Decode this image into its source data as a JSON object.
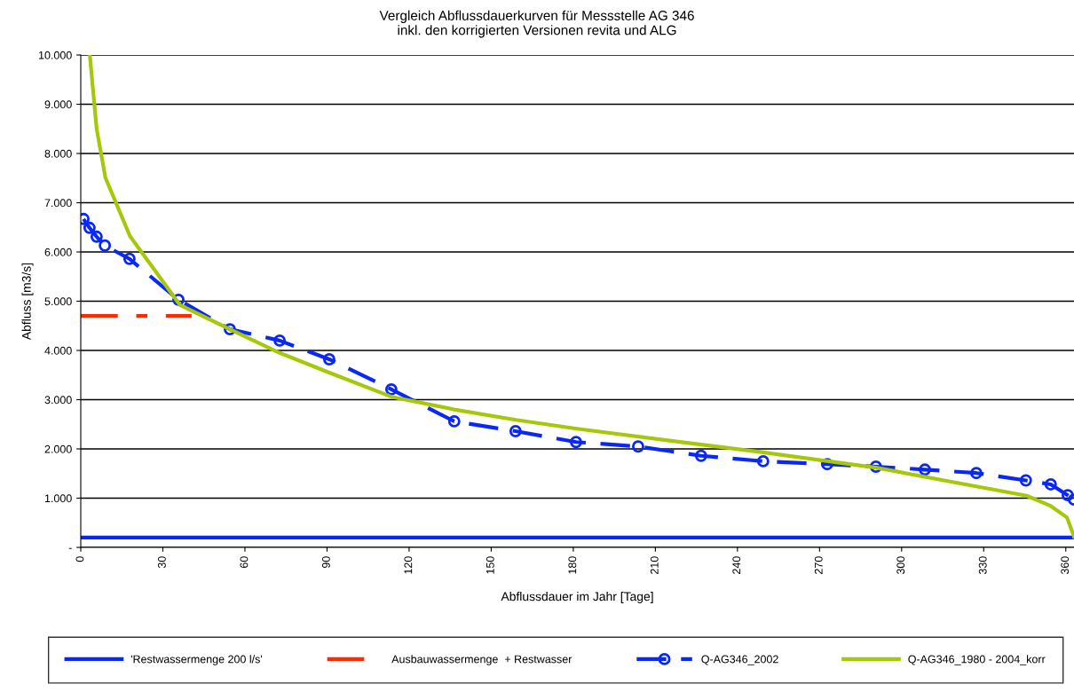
{
  "chart_data": {
    "type": "line",
    "title": "Vergleich Abflussdauerkurven für Messstelle AG 346\ninkl. den korrigierten Versionen revita und ALG",
    "xlabel": "Abflussdauer im Jahr [Tage]",
    "ylabel": "Abfluss [m3/s]",
    "xlim": [
      0,
      363
    ],
    "xticks": [
      0,
      30,
      60,
      90,
      120,
      150,
      180,
      210,
      240,
      270,
      300,
      330,
      360
    ],
    "ylim": [
      0,
      10000
    ],
    "yticks": [
      {
        "value": 0,
        "label": "-"
      },
      {
        "value": 1000,
        "label": "1.000"
      },
      {
        "value": 2000,
        "label": "2.000"
      },
      {
        "value": 3000,
        "label": "3.000"
      },
      {
        "value": 4000,
        "label": "4.000"
      },
      {
        "value": 5000,
        "label": "5.000"
      },
      {
        "value": 6000,
        "label": "6.000"
      },
      {
        "value": 7000,
        "label": "7.000"
      },
      {
        "value": 8000,
        "label": "8.000"
      },
      {
        "value": 9000,
        "label": "9.000"
      },
      {
        "value": 10000,
        "label": "10.000"
      }
    ],
    "grid": "y",
    "legend": "bottom",
    "series": [
      {
        "name": "'Restwassermenge 200 l/s'",
        "color": "#0a28f5",
        "line_style": "solid",
        "marker": "none",
        "x": [
          0,
          363
        ],
        "values": [
          200,
          200
        ]
      },
      {
        "name": "Ausbauwassermenge  + Restwasser",
        "color": "#ff2a00",
        "line_style": "dashdot",
        "marker": "none",
        "x": [
          0,
          40.5
        ],
        "values": [
          4700,
          4700
        ]
      },
      {
        "name": "Q-AG346_2002",
        "color": "#0a28f5",
        "line_style": "dashed",
        "marker": "circle",
        "x": [
          1,
          3.2,
          5.8,
          8.8,
          17.8,
          35.7,
          54.5,
          72.7,
          90.8,
          113.5,
          136.5,
          158.9,
          181,
          203.7,
          226.7,
          249.4,
          272.8,
          290.6,
          308.5,
          327.3,
          345.4,
          354.5,
          360.7,
          363
        ],
        "values": [
          6670,
          6490,
          6310,
          6130,
          5860,
          5030,
          4430,
          4200,
          3820,
          3210,
          2560,
          2360,
          2140,
          2050,
          1860,
          1750,
          1690,
          1640,
          1580,
          1510,
          1360,
          1280,
          1060,
          970
        ]
      },
      {
        "name": "Q-AG346_1980 - 2004_korr",
        "color": "#a5c80a",
        "line_style": "solid",
        "marker": "none",
        "x": [
          3.3,
          5.8,
          9,
          18,
          36.3,
          54.5,
          72.7,
          90.8,
          113.5,
          136.5,
          159,
          181.3,
          223.5,
          249.4,
          290.6,
          327.3,
          345.7,
          354.2,
          360.4,
          363
        ],
        "values": [
          10000,
          8500,
          7510,
          6320,
          4920,
          4430,
          3950,
          3550,
          3060,
          2800,
          2590,
          2410,
          2110,
          1930,
          1620,
          1240,
          1050,
          850,
          610,
          220
        ]
      }
    ]
  }
}
